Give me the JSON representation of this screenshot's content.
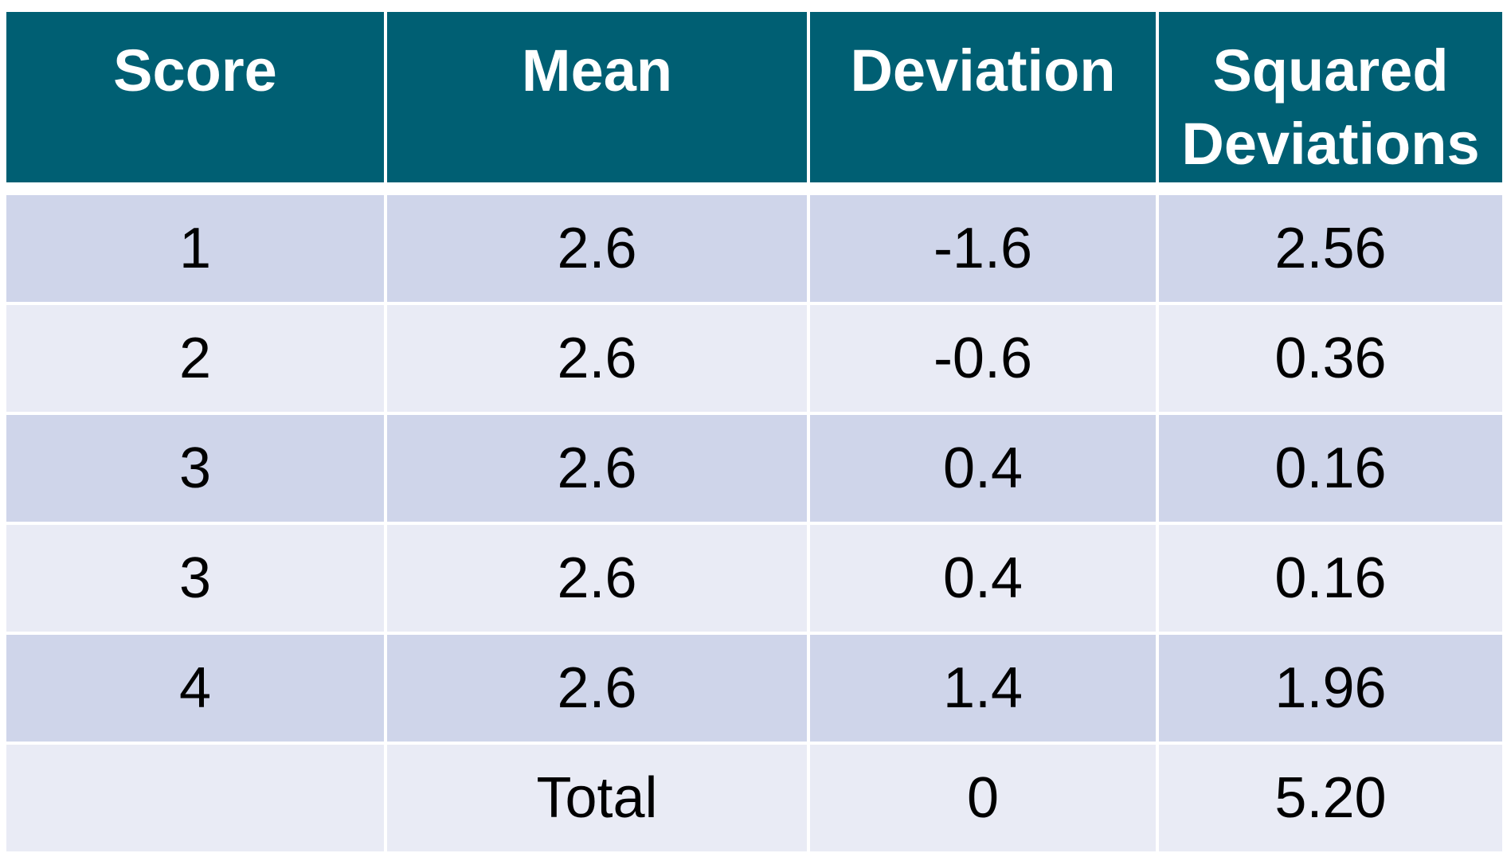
{
  "colors": {
    "header_bg": "#005f73",
    "header_text": "#ffffff",
    "row_odd_bg": "#cfd5ea",
    "row_even_bg": "#e9ebf5",
    "cell_text": "#000000"
  },
  "table": {
    "headers": [
      "Score",
      "Mean",
      "Deviation",
      "Squared Deviations"
    ],
    "rows": [
      [
        "1",
        "2.6",
        "-1.6",
        "2.56"
      ],
      [
        "2",
        "2.6",
        "-0.6",
        "0.36"
      ],
      [
        "3",
        "2.6",
        "0.4",
        "0.16"
      ],
      [
        "3",
        "2.6",
        "0.4",
        "0.16"
      ],
      [
        "4",
        "2.6",
        "1.4",
        "1.96"
      ],
      [
        "",
        "Total",
        "0",
        "5.20"
      ]
    ]
  }
}
